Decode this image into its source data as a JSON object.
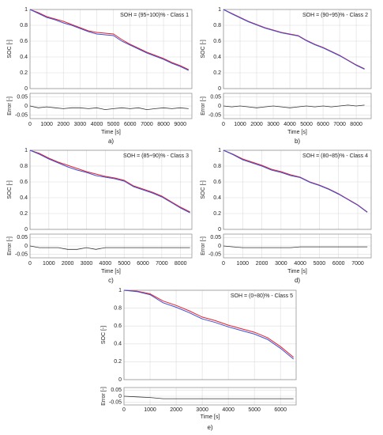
{
  "chart_data": [
    {
      "type": "line",
      "title": "SOH = (95÷100)% - Class 1",
      "panel_label": "a)",
      "ylabel": "SOC [-]",
      "xlabel": "Time [s]",
      "x": [
        0,
        500,
        1000,
        1500,
        2000,
        2500,
        3000,
        3500,
        4000,
        4500,
        5000,
        5500,
        6000,
        6500,
        7000,
        7500,
        8000,
        8500,
        9000,
        9500
      ],
      "xlim": [
        0,
        9700
      ],
      "xticks": [
        0,
        1000,
        2000,
        3000,
        4000,
        5000,
        6000,
        7000,
        8000,
        9000
      ],
      "ylim": [
        0,
        1
      ],
      "yticks": [
        0,
        0.2,
        0.4,
        0.6,
        0.8,
        1
      ],
      "grid": true,
      "series": [
        {
          "color": "#e8202a",
          "values": [
            1,
            0.96,
            0.91,
            0.88,
            0.85,
            0.81,
            0.77,
            0.73,
            0.71,
            0.7,
            0.69,
            0.62,
            0.56,
            0.51,
            0.46,
            0.42,
            0.38,
            0.33,
            0.29,
            0.24
          ]
        },
        {
          "color": "#3b4fd8",
          "values": [
            1,
            0.95,
            0.9,
            0.87,
            0.83,
            0.8,
            0.76,
            0.72,
            0.69,
            0.68,
            0.67,
            0.6,
            0.55,
            0.5,
            0.45,
            0.41,
            0.37,
            0.32,
            0.28,
            0.23
          ]
        }
      ],
      "error": {
        "ylabel": "Error [-]",
        "ylim": [
          -0.07,
          0.07
        ],
        "yticks": [
          -0.05,
          0,
          0.05
        ],
        "color": "#333333",
        "values": [
          0,
          -0.01,
          -0.005,
          -0.01,
          -0.015,
          -0.01,
          -0.01,
          -0.015,
          -0.01,
          -0.02,
          -0.015,
          -0.01,
          -0.015,
          -0.01,
          -0.02,
          -0.015,
          -0.01,
          -0.015,
          -0.01,
          -0.015
        ]
      }
    },
    {
      "type": "line",
      "title": "SOH = (90÷95)% - Class 2",
      "panel_label": "b)",
      "ylabel": "SOC [-]",
      "xlabel": "Time [s]",
      "x": [
        0,
        500,
        1000,
        1500,
        2000,
        2500,
        3000,
        3500,
        4000,
        4500,
        5000,
        5500,
        6000,
        6500,
        7000,
        7500,
        8000,
        8500
      ],
      "xlim": [
        0,
        8900
      ],
      "xticks": [
        0,
        1000,
        2000,
        3000,
        4000,
        5000,
        6000,
        7000,
        8000
      ],
      "ylim": [
        0,
        1
      ],
      "yticks": [
        0,
        0.2,
        0.4,
        0.6,
        0.8,
        1
      ],
      "grid": true,
      "series": [
        {
          "color": "#e8202a",
          "values": [
            1,
            0.95,
            0.9,
            0.85,
            0.81,
            0.77,
            0.74,
            0.71,
            0.69,
            0.67,
            0.61,
            0.56,
            0.52,
            0.47,
            0.42,
            0.36,
            0.3,
            0.25
          ]
        },
        {
          "color": "#3b4fd8",
          "values": [
            1,
            0.945,
            0.895,
            0.845,
            0.805,
            0.765,
            0.735,
            0.705,
            0.685,
            0.665,
            0.605,
            0.555,
            0.515,
            0.465,
            0.415,
            0.355,
            0.295,
            0.245
          ]
        }
      ],
      "error": {
        "ylabel": "Error [-]",
        "ylim": [
          -0.07,
          0.07
        ],
        "yticks": [
          -0.05,
          0,
          0.05
        ],
        "color": "#333333",
        "values": [
          0,
          -0.005,
          0,
          -0.005,
          -0.01,
          -0.005,
          0,
          -0.005,
          -0.01,
          -0.005,
          0,
          -0.005,
          0,
          -0.005,
          0,
          0.005,
          0,
          0.005
        ]
      }
    },
    {
      "type": "line",
      "title": "SOH = (85÷90)% - Class 3",
      "panel_label": "c)",
      "ylabel": "SOC [-]",
      "xlabel": "Time [s]",
      "x": [
        0,
        500,
        1000,
        1500,
        2000,
        2500,
        3000,
        3500,
        4000,
        4500,
        5000,
        5500,
        6000,
        6500,
        7000,
        7500,
        8000,
        8500
      ],
      "xlim": [
        0,
        8600
      ],
      "xticks": [
        0,
        1000,
        2000,
        3000,
        4000,
        5000,
        6000,
        7000,
        8000
      ],
      "ylim": [
        0,
        1
      ],
      "yticks": [
        0,
        0.2,
        0.4,
        0.6,
        0.8,
        1
      ],
      "grid": true,
      "series": [
        {
          "color": "#e8202a",
          "values": [
            1,
            0.96,
            0.9,
            0.85,
            0.81,
            0.77,
            0.73,
            0.7,
            0.67,
            0.65,
            0.62,
            0.55,
            0.51,
            0.47,
            0.42,
            0.35,
            0.28,
            0.22
          ]
        },
        {
          "color": "#3b4fd8",
          "values": [
            1,
            0.95,
            0.89,
            0.84,
            0.79,
            0.75,
            0.72,
            0.68,
            0.66,
            0.64,
            0.61,
            0.54,
            0.5,
            0.46,
            0.41,
            0.34,
            0.27,
            0.21
          ]
        }
      ],
      "error": {
        "ylabel": "Error [-]",
        "ylim": [
          -0.07,
          0.07
        ],
        "yticks": [
          -0.05,
          0,
          0.05
        ],
        "color": "#333333",
        "values": [
          0,
          -0.01,
          -0.01,
          -0.01,
          -0.02,
          -0.02,
          -0.01,
          -0.02,
          -0.01,
          -0.01,
          -0.01,
          -0.01,
          -0.01,
          -0.01,
          -0.01,
          -0.01,
          -0.01,
          -0.01
        ]
      }
    },
    {
      "type": "line",
      "title": "SOH = (80÷85)% - Class 4",
      "panel_label": "d)",
      "ylabel": "SOC [-]",
      "xlabel": "Time [s]",
      "x": [
        0,
        500,
        1000,
        1500,
        2000,
        2500,
        3000,
        3500,
        4000,
        4500,
        5000,
        5500,
        6000,
        6500,
        7000,
        7500
      ],
      "xlim": [
        0,
        7700
      ],
      "xticks": [
        0,
        1000,
        2000,
        3000,
        4000,
        5000,
        6000,
        7000
      ],
      "ylim": [
        0,
        1
      ],
      "yticks": [
        0,
        0.2,
        0.4,
        0.6,
        0.8,
        1
      ],
      "grid": true,
      "series": [
        {
          "color": "#e8202a",
          "values": [
            1,
            0.95,
            0.89,
            0.85,
            0.81,
            0.76,
            0.73,
            0.69,
            0.66,
            0.6,
            0.56,
            0.51,
            0.45,
            0.38,
            0.31,
            0.22
          ]
        },
        {
          "color": "#3b4fd8",
          "values": [
            1,
            0.945,
            0.88,
            0.84,
            0.8,
            0.75,
            0.72,
            0.68,
            0.655,
            0.595,
            0.555,
            0.505,
            0.445,
            0.375,
            0.305,
            0.215
          ]
        }
      ],
      "error": {
        "ylabel": "Error [-]",
        "ylim": [
          -0.07,
          0.07
        ],
        "yticks": [
          -0.05,
          0,
          0.05
        ],
        "color": "#333333",
        "values": [
          0,
          -0.005,
          -0.01,
          -0.01,
          -0.01,
          -0.01,
          -0.01,
          -0.01,
          -0.005,
          -0.005,
          -0.005,
          -0.005,
          -0.005,
          -0.005,
          -0.005,
          -0.005
        ]
      }
    },
    {
      "type": "line",
      "title": "SOH = (0÷80)% - Class 5",
      "panel_label": "e)",
      "ylabel": "SOC [-]",
      "xlabel": "Time [s]",
      "x": [
        0,
        500,
        1000,
        1500,
        2000,
        2500,
        3000,
        3500,
        4000,
        4500,
        5000,
        5500,
        6000,
        6500
      ],
      "xlim": [
        0,
        6600
      ],
      "xticks": [
        0,
        1000,
        2000,
        3000,
        4000,
        5000,
        6000
      ],
      "ylim": [
        0,
        1
      ],
      "yticks": [
        0,
        0.2,
        0.4,
        0.6,
        0.8,
        1
      ],
      "grid": true,
      "series": [
        {
          "color": "#e8202a",
          "values": [
            1,
            0.99,
            0.96,
            0.88,
            0.83,
            0.77,
            0.7,
            0.66,
            0.61,
            0.57,
            0.53,
            0.47,
            0.37,
            0.25
          ]
        },
        {
          "color": "#3b4fd8",
          "values": [
            1,
            0.985,
            0.95,
            0.86,
            0.81,
            0.75,
            0.68,
            0.64,
            0.59,
            0.55,
            0.51,
            0.45,
            0.35,
            0.23
          ]
        }
      ],
      "error": {
        "ylabel": "Error [-]",
        "ylim": [
          -0.07,
          0.07
        ],
        "yticks": [
          -0.05,
          0,
          0.05
        ],
        "color": "#333333",
        "values": [
          0,
          -0.005,
          -0.01,
          -0.02,
          -0.02,
          -0.02,
          -0.02,
          -0.02,
          -0.02,
          -0.02,
          -0.02,
          -0.02,
          -0.02,
          -0.02
        ]
      }
    }
  ]
}
